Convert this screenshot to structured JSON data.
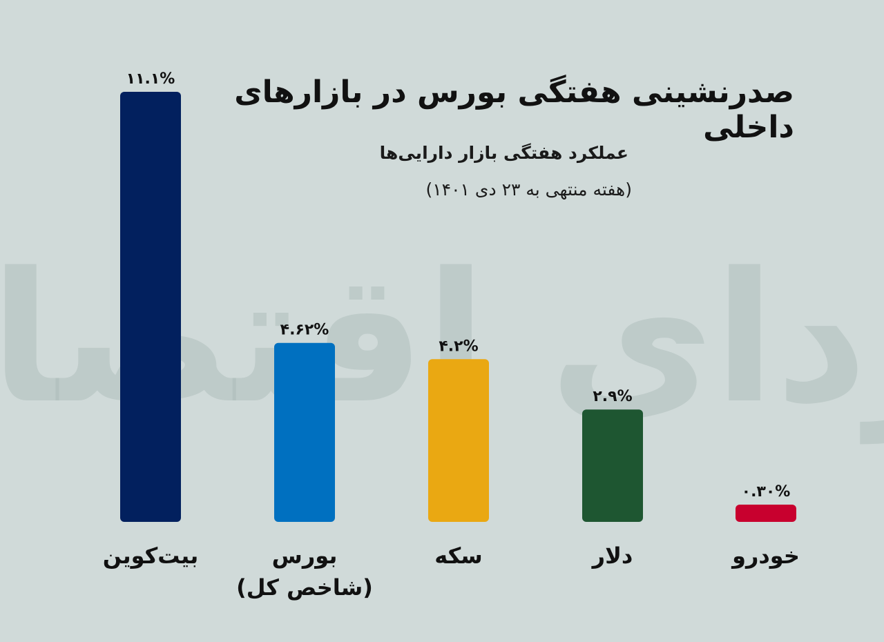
{
  "page": {
    "background": "#d0dad9"
  },
  "title": "صدرنشینی هفتگی بورس در بازارهای داخلی",
  "subtitle": "عملکرد هفتگی بازار دارایی‌ها",
  "date_note": "(هفته منتهی به ۲۳ دی ۱۴۰۱)",
  "watermark": "فردای اقتصاد",
  "chart_data": {
    "type": "bar",
    "categories": [
      "بیت‌کوین",
      "بورس (شاخص کل)",
      "سکه",
      "دلار",
      "خودرو"
    ],
    "category_lines": [
      [
        "بیت‌کوین"
      ],
      [
        "بورس",
        "(شاخص کل)"
      ],
      [
        "سکه"
      ],
      [
        "دلار"
      ],
      [
        "خودرو"
      ]
    ],
    "values": [
      11.1,
      4.62,
      4.2,
      2.9,
      0.3
    ],
    "value_labels": [
      "۱۱.۱%",
      "۴.۶۲%",
      "۴.۲%",
      "۲.۹%",
      "۰.۳۰%"
    ],
    "colors": [
      "#02205e",
      "#0070c0",
      "#eaa812",
      "#1e5631",
      "#c8002e"
    ],
    "title": "صدرنشینی هفتگی بورس در بازارهای داخلی",
    "xlabel": "",
    "ylabel": "",
    "ylim": [
      0,
      11.1
    ],
    "grid": false,
    "legend": "none"
  }
}
